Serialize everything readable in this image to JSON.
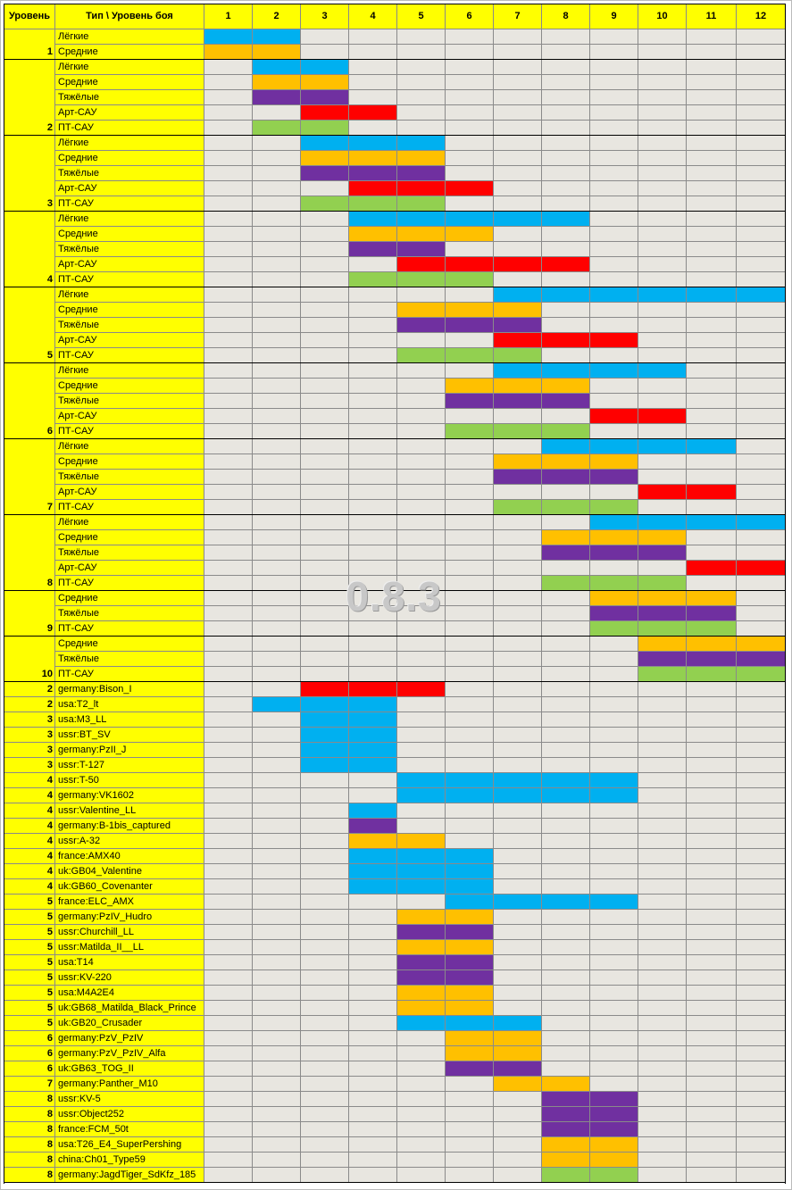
{
  "header": {
    "level": "Уровень",
    "type": "Тип \\ Уровень боя",
    "battle_levels": [
      "1",
      "2",
      "3",
      "4",
      "5",
      "6",
      "7",
      "8",
      "9",
      "10",
      "11",
      "12"
    ]
  },
  "groups": [
    {
      "level": "1",
      "rows": [
        {
          "type": "Лёгкие",
          "from": 1,
          "to": 2,
          "color": "#00b0f0"
        },
        {
          "type": "Средние",
          "from": 1,
          "to": 2,
          "color": "#ffc000"
        }
      ]
    },
    {
      "level": "2",
      "rows": [
        {
          "type": "Лёгкие",
          "from": 2,
          "to": 3,
          "color": "#00b0f0"
        },
        {
          "type": "Средние",
          "from": 2,
          "to": 3,
          "color": "#ffc000"
        },
        {
          "type": "Тяжёлые",
          "from": 2,
          "to": 3,
          "color": "#7030a0"
        },
        {
          "type": "Арт-САУ",
          "from": 3,
          "to": 4,
          "color": "#ff0000"
        },
        {
          "type": "ПТ-САУ",
          "from": 2,
          "to": 3,
          "color": "#92d050"
        }
      ]
    },
    {
      "level": "3",
      "rows": [
        {
          "type": "Лёгкие",
          "from": 3,
          "to": 5,
          "color": "#00b0f0"
        },
        {
          "type": "Средние",
          "from": 3,
          "to": 5,
          "color": "#ffc000"
        },
        {
          "type": "Тяжёлые",
          "from": 3,
          "to": 5,
          "color": "#7030a0"
        },
        {
          "type": "Арт-САУ",
          "from": 4,
          "to": 6,
          "color": "#ff0000"
        },
        {
          "type": "ПТ-САУ",
          "from": 3,
          "to": 5,
          "color": "#92d050"
        }
      ]
    },
    {
      "level": "4",
      "rows": [
        {
          "type": "Лёгкие",
          "from": 4,
          "to": 8,
          "color": "#00b0f0"
        },
        {
          "type": "Средние",
          "from": 4,
          "to": 6,
          "color": "#ffc000"
        },
        {
          "type": "Тяжёлые",
          "from": 4,
          "to": 5,
          "color": "#7030a0"
        },
        {
          "type": "Арт-САУ",
          "from": 5,
          "to": 8,
          "color": "#ff0000"
        },
        {
          "type": "ПТ-САУ",
          "from": 4,
          "to": 6,
          "color": "#92d050"
        }
      ]
    },
    {
      "level": "5",
      "rows": [
        {
          "type": "Лёгкие",
          "from": 7,
          "to": 12,
          "color": "#00b0f0"
        },
        {
          "type": "Средние",
          "from": 5,
          "to": 7,
          "color": "#ffc000"
        },
        {
          "type": "Тяжёлые",
          "from": 5,
          "to": 7,
          "color": "#7030a0"
        },
        {
          "type": "Арт-САУ",
          "from": 7,
          "to": 9,
          "color": "#ff0000"
        },
        {
          "type": "ПТ-САУ",
          "from": 5,
          "to": 7,
          "color": "#92d050"
        }
      ]
    },
    {
      "level": "6",
      "rows": [
        {
          "type": "Лёгкие",
          "from": 7,
          "to": 10,
          "color": "#00b0f0"
        },
        {
          "type": "Средние",
          "from": 6,
          "to": 8,
          "color": "#ffc000"
        },
        {
          "type": "Тяжёлые",
          "from": 6,
          "to": 8,
          "color": "#7030a0"
        },
        {
          "type": "Арт-САУ",
          "from": 9,
          "to": 10,
          "color": "#ff0000"
        },
        {
          "type": "ПТ-САУ",
          "from": 6,
          "to": 8,
          "color": "#92d050"
        }
      ]
    },
    {
      "level": "7",
      "rows": [
        {
          "type": "Лёгкие",
          "from": 8,
          "to": 11,
          "color": "#00b0f0"
        },
        {
          "type": "Средние",
          "from": 7,
          "to": 9,
          "color": "#ffc000"
        },
        {
          "type": "Тяжёлые",
          "from": 7,
          "to": 9,
          "color": "#7030a0"
        },
        {
          "type": "Арт-САУ",
          "from": 10,
          "to": 11,
          "color": "#ff0000"
        },
        {
          "type": "ПТ-САУ",
          "from": 7,
          "to": 9,
          "color": "#92d050"
        }
      ]
    },
    {
      "level": "8",
      "rows": [
        {
          "type": "Лёгкие",
          "from": 9,
          "to": 12,
          "color": "#00b0f0"
        },
        {
          "type": "Средние",
          "from": 8,
          "to": 10,
          "color": "#ffc000"
        },
        {
          "type": "Тяжёлые",
          "from": 8,
          "to": 10,
          "color": "#7030a0"
        },
        {
          "type": "Арт-САУ",
          "from": 11,
          "to": 12,
          "color": "#ff0000"
        },
        {
          "type": "ПТ-САУ",
          "from": 8,
          "to": 10,
          "color": "#92d050"
        }
      ]
    },
    {
      "level": "9",
      "rows": [
        {
          "type": "Средние",
          "from": 9,
          "to": 11,
          "color": "#ffc000"
        },
        {
          "type": "Тяжёлые",
          "from": 9,
          "to": 11,
          "color": "#7030a0"
        },
        {
          "type": "ПТ-САУ",
          "from": 9,
          "to": 11,
          "color": "#92d050"
        }
      ]
    },
    {
      "level": "10",
      "rows": [
        {
          "type": "Средние",
          "from": 10,
          "to": 12,
          "color": "#ffc000"
        },
        {
          "type": "Тяжёлые",
          "from": 10,
          "to": 12,
          "color": "#7030a0"
        },
        {
          "type": "ПТ-САУ",
          "from": 10,
          "to": 12,
          "color": "#92d050"
        }
      ]
    }
  ],
  "vehicles": [
    {
      "level": "2",
      "name": "germany:Bison_I",
      "from": 3,
      "to": 5,
      "color": "#ff0000"
    },
    {
      "level": "2",
      "name": "usa:T2_lt",
      "from": 2,
      "to": 4,
      "color": "#00b0f0"
    },
    {
      "level": "3",
      "name": "usa:M3_LL",
      "from": 3,
      "to": 4,
      "color": "#00b0f0"
    },
    {
      "level": "3",
      "name": "ussr:BT_SV",
      "from": 3,
      "to": 4,
      "color": "#00b0f0"
    },
    {
      "level": "3",
      "name": "germany:PzII_J",
      "from": 3,
      "to": 4,
      "color": "#00b0f0"
    },
    {
      "level": "3",
      "name": "ussr:T-127",
      "from": 3,
      "to": 4,
      "color": "#00b0f0"
    },
    {
      "level": "4",
      "name": "ussr:T-50",
      "from": 5,
      "to": 9,
      "color": "#00b0f0"
    },
    {
      "level": "4",
      "name": "germany:VK1602",
      "from": 5,
      "to": 9,
      "color": "#00b0f0"
    },
    {
      "level": "4",
      "name": "ussr:Valentine_LL",
      "from": 4,
      "to": 4,
      "color": "#00b0f0"
    },
    {
      "level": "4",
      "name": "germany:B-1bis_captured",
      "from": 4,
      "to": 4,
      "color": "#7030a0"
    },
    {
      "level": "4",
      "name": "ussr:A-32",
      "from": 4,
      "to": 5,
      "color": "#ffc000"
    },
    {
      "level": "4",
      "name": "france:AMX40",
      "from": 4,
      "to": 6,
      "color": "#00b0f0"
    },
    {
      "level": "4",
      "name": "uk:GB04_Valentine",
      "from": 4,
      "to": 6,
      "color": "#00b0f0"
    },
    {
      "level": "4",
      "name": "uk:GB60_Covenanter",
      "from": 4,
      "to": 6,
      "color": "#00b0f0"
    },
    {
      "level": "5",
      "name": "france:ELC_AMX",
      "from": 6,
      "to": 9,
      "color": "#00b0f0"
    },
    {
      "level": "5",
      "name": "germany:PzIV_Hudro",
      "from": 5,
      "to": 6,
      "color": "#ffc000"
    },
    {
      "level": "5",
      "name": "ussr:Churchill_LL",
      "from": 5,
      "to": 6,
      "color": "#7030a0"
    },
    {
      "level": "5",
      "name": "ussr:Matilda_II__LL",
      "from": 5,
      "to": 6,
      "color": "#ffc000"
    },
    {
      "level": "5",
      "name": "usa:T14",
      "from": 5,
      "to": 6,
      "color": "#7030a0"
    },
    {
      "level": "5",
      "name": "ussr:KV-220",
      "from": 5,
      "to": 6,
      "color": "#7030a0"
    },
    {
      "level": "5",
      "name": "usa:M4A2E4",
      "from": 5,
      "to": 6,
      "color": "#ffc000"
    },
    {
      "level": "5",
      "name": "uk:GB68_Matilda_Black_Prince",
      "from": 5,
      "to": 6,
      "color": "#ffc000"
    },
    {
      "level": "5",
      "name": "uk:GB20_Crusader",
      "from": 5,
      "to": 7,
      "color": "#00b0f0"
    },
    {
      "level": "6",
      "name": "germany:PzV_PzIV",
      "from": 6,
      "to": 7,
      "color": "#ffc000"
    },
    {
      "level": "6",
      "name": "germany:PzV_PzIV_Alfa",
      "from": 6,
      "to": 7,
      "color": "#ffc000"
    },
    {
      "level": "6",
      "name": "uk:GB63_TOG_II",
      "from": 6,
      "to": 7,
      "color": "#7030a0"
    },
    {
      "level": "7",
      "name": "germany:Panther_M10",
      "from": 7,
      "to": 8,
      "color": "#ffc000"
    },
    {
      "level": "8",
      "name": "ussr:KV-5",
      "from": 8,
      "to": 9,
      "color": "#7030a0"
    },
    {
      "level": "8",
      "name": "ussr:Object252",
      "from": 8,
      "to": 9,
      "color": "#7030a0"
    },
    {
      "level": "8",
      "name": "france:FCM_50t",
      "from": 8,
      "to": 9,
      "color": "#7030a0"
    },
    {
      "level": "8",
      "name": "usa:T26_E4_SuperPershing",
      "from": 8,
      "to": 9,
      "color": "#ffc000"
    },
    {
      "level": "8",
      "name": "china:Ch01_Type59",
      "from": 8,
      "to": 9,
      "color": "#ffc000"
    },
    {
      "level": "8",
      "name": "germany:JagdTiger_SdKfz_185",
      "from": 8,
      "to": 9,
      "color": "#92d050"
    }
  ],
  "watermark": "0.8.3"
}
